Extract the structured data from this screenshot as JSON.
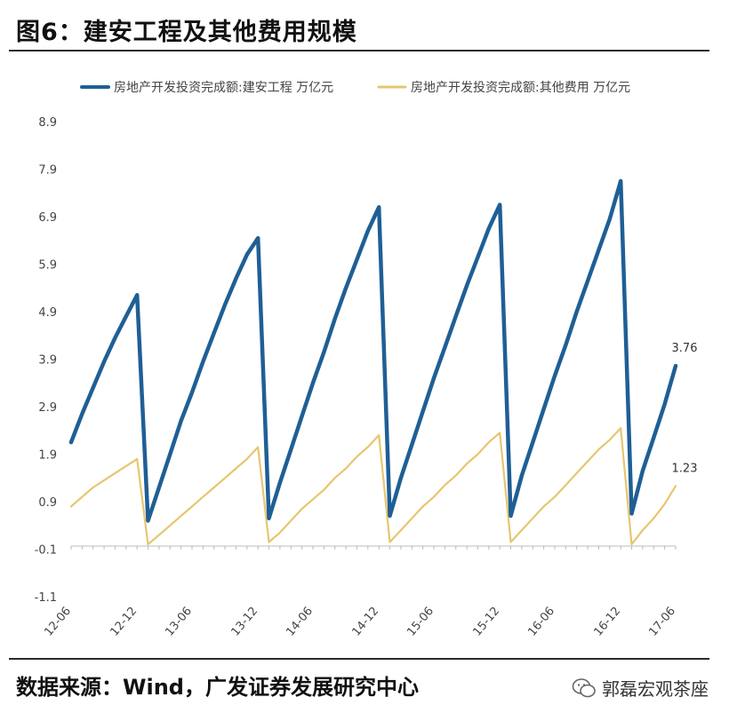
{
  "header": {
    "title": "图6：建安工程及其他费用规模"
  },
  "footer": {
    "source": "数据来源：Wind，广发证券发展研究中心",
    "watermark": "郭磊宏观茶座",
    "watermark_icon": "wechat-icon"
  },
  "chart_data": {
    "type": "line",
    "title": "建安工程及其他费用规模",
    "xlabel": "",
    "ylabel": "",
    "ylim": [
      -1.1,
      8.9
    ],
    "y_ticks": [
      "8.9",
      "7.9",
      "6.9",
      "5.9",
      "4.9",
      "3.9",
      "2.9",
      "1.9",
      "0.9",
      "-0.1",
      "-1.1"
    ],
    "x_tick_labels": [
      "12-06",
      "12-12",
      "13-06",
      "13-12",
      "14-06",
      "14-12",
      "15-06",
      "15-12",
      "16-06",
      "16-12",
      "17-06"
    ],
    "legend_position": "top",
    "x": [
      "12-06",
      "12-07",
      "12-08",
      "12-09",
      "12-10",
      "12-11",
      "12-12",
      "13-02",
      "13-03",
      "13-04",
      "13-05",
      "13-06",
      "13-07",
      "13-08",
      "13-09",
      "13-10",
      "13-11",
      "13-12",
      "14-02",
      "14-03",
      "14-04",
      "14-05",
      "14-06",
      "14-07",
      "14-08",
      "14-09",
      "14-10",
      "14-11",
      "14-12",
      "15-02",
      "15-03",
      "15-04",
      "15-05",
      "15-06",
      "15-07",
      "15-08",
      "15-09",
      "15-10",
      "15-11",
      "15-12",
      "16-02",
      "16-03",
      "16-04",
      "16-05",
      "16-06",
      "16-07",
      "16-08",
      "16-09",
      "16-10",
      "16-11",
      "16-12",
      "17-02",
      "17-03",
      "17-04",
      "17-05",
      "17-06"
    ],
    "series": [
      {
        "name": "房地产开发投资完成额:建安工程 万亿元",
        "color": "#1f5f95",
        "values": [
          2.15,
          2.75,
          3.3,
          3.85,
          4.35,
          4.8,
          5.25,
          0.5,
          1.2,
          1.9,
          2.6,
          3.2,
          3.85,
          4.45,
          5.05,
          5.6,
          6.1,
          6.45,
          0.55,
          1.3,
          2.0,
          2.7,
          3.4,
          4.05,
          4.75,
          5.4,
          6.0,
          6.6,
          7.1,
          0.6,
          1.4,
          2.1,
          2.8,
          3.5,
          4.15,
          4.8,
          5.45,
          6.05,
          6.65,
          7.15,
          0.6,
          1.45,
          2.15,
          2.85,
          3.55,
          4.2,
          4.9,
          5.55,
          6.2,
          6.85,
          7.65,
          0.65,
          1.55,
          2.25,
          2.95,
          3.76
        ]
      },
      {
        "name": "房地产开发投资完成额:其他费用 万亿元",
        "color": "#e6c670",
        "values": [
          0.8,
          1.0,
          1.2,
          1.35,
          1.5,
          1.65,
          1.8,
          0.0,
          0.2,
          0.4,
          0.6,
          0.8,
          1.0,
          1.2,
          1.4,
          1.6,
          1.8,
          2.05,
          0.05,
          0.25,
          0.5,
          0.75,
          0.95,
          1.15,
          1.4,
          1.6,
          1.85,
          2.05,
          2.3,
          0.05,
          0.3,
          0.55,
          0.8,
          1.0,
          1.25,
          1.45,
          1.7,
          1.9,
          2.15,
          2.35,
          0.05,
          0.3,
          0.55,
          0.8,
          1.0,
          1.25,
          1.5,
          1.75,
          2.0,
          2.2,
          2.45,
          0.0,
          0.3,
          0.55,
          0.85,
          1.23
        ]
      }
    ],
    "annotations": [
      {
        "series": 0,
        "label": "3.76"
      },
      {
        "series": 1,
        "label": "1.23"
      }
    ]
  }
}
